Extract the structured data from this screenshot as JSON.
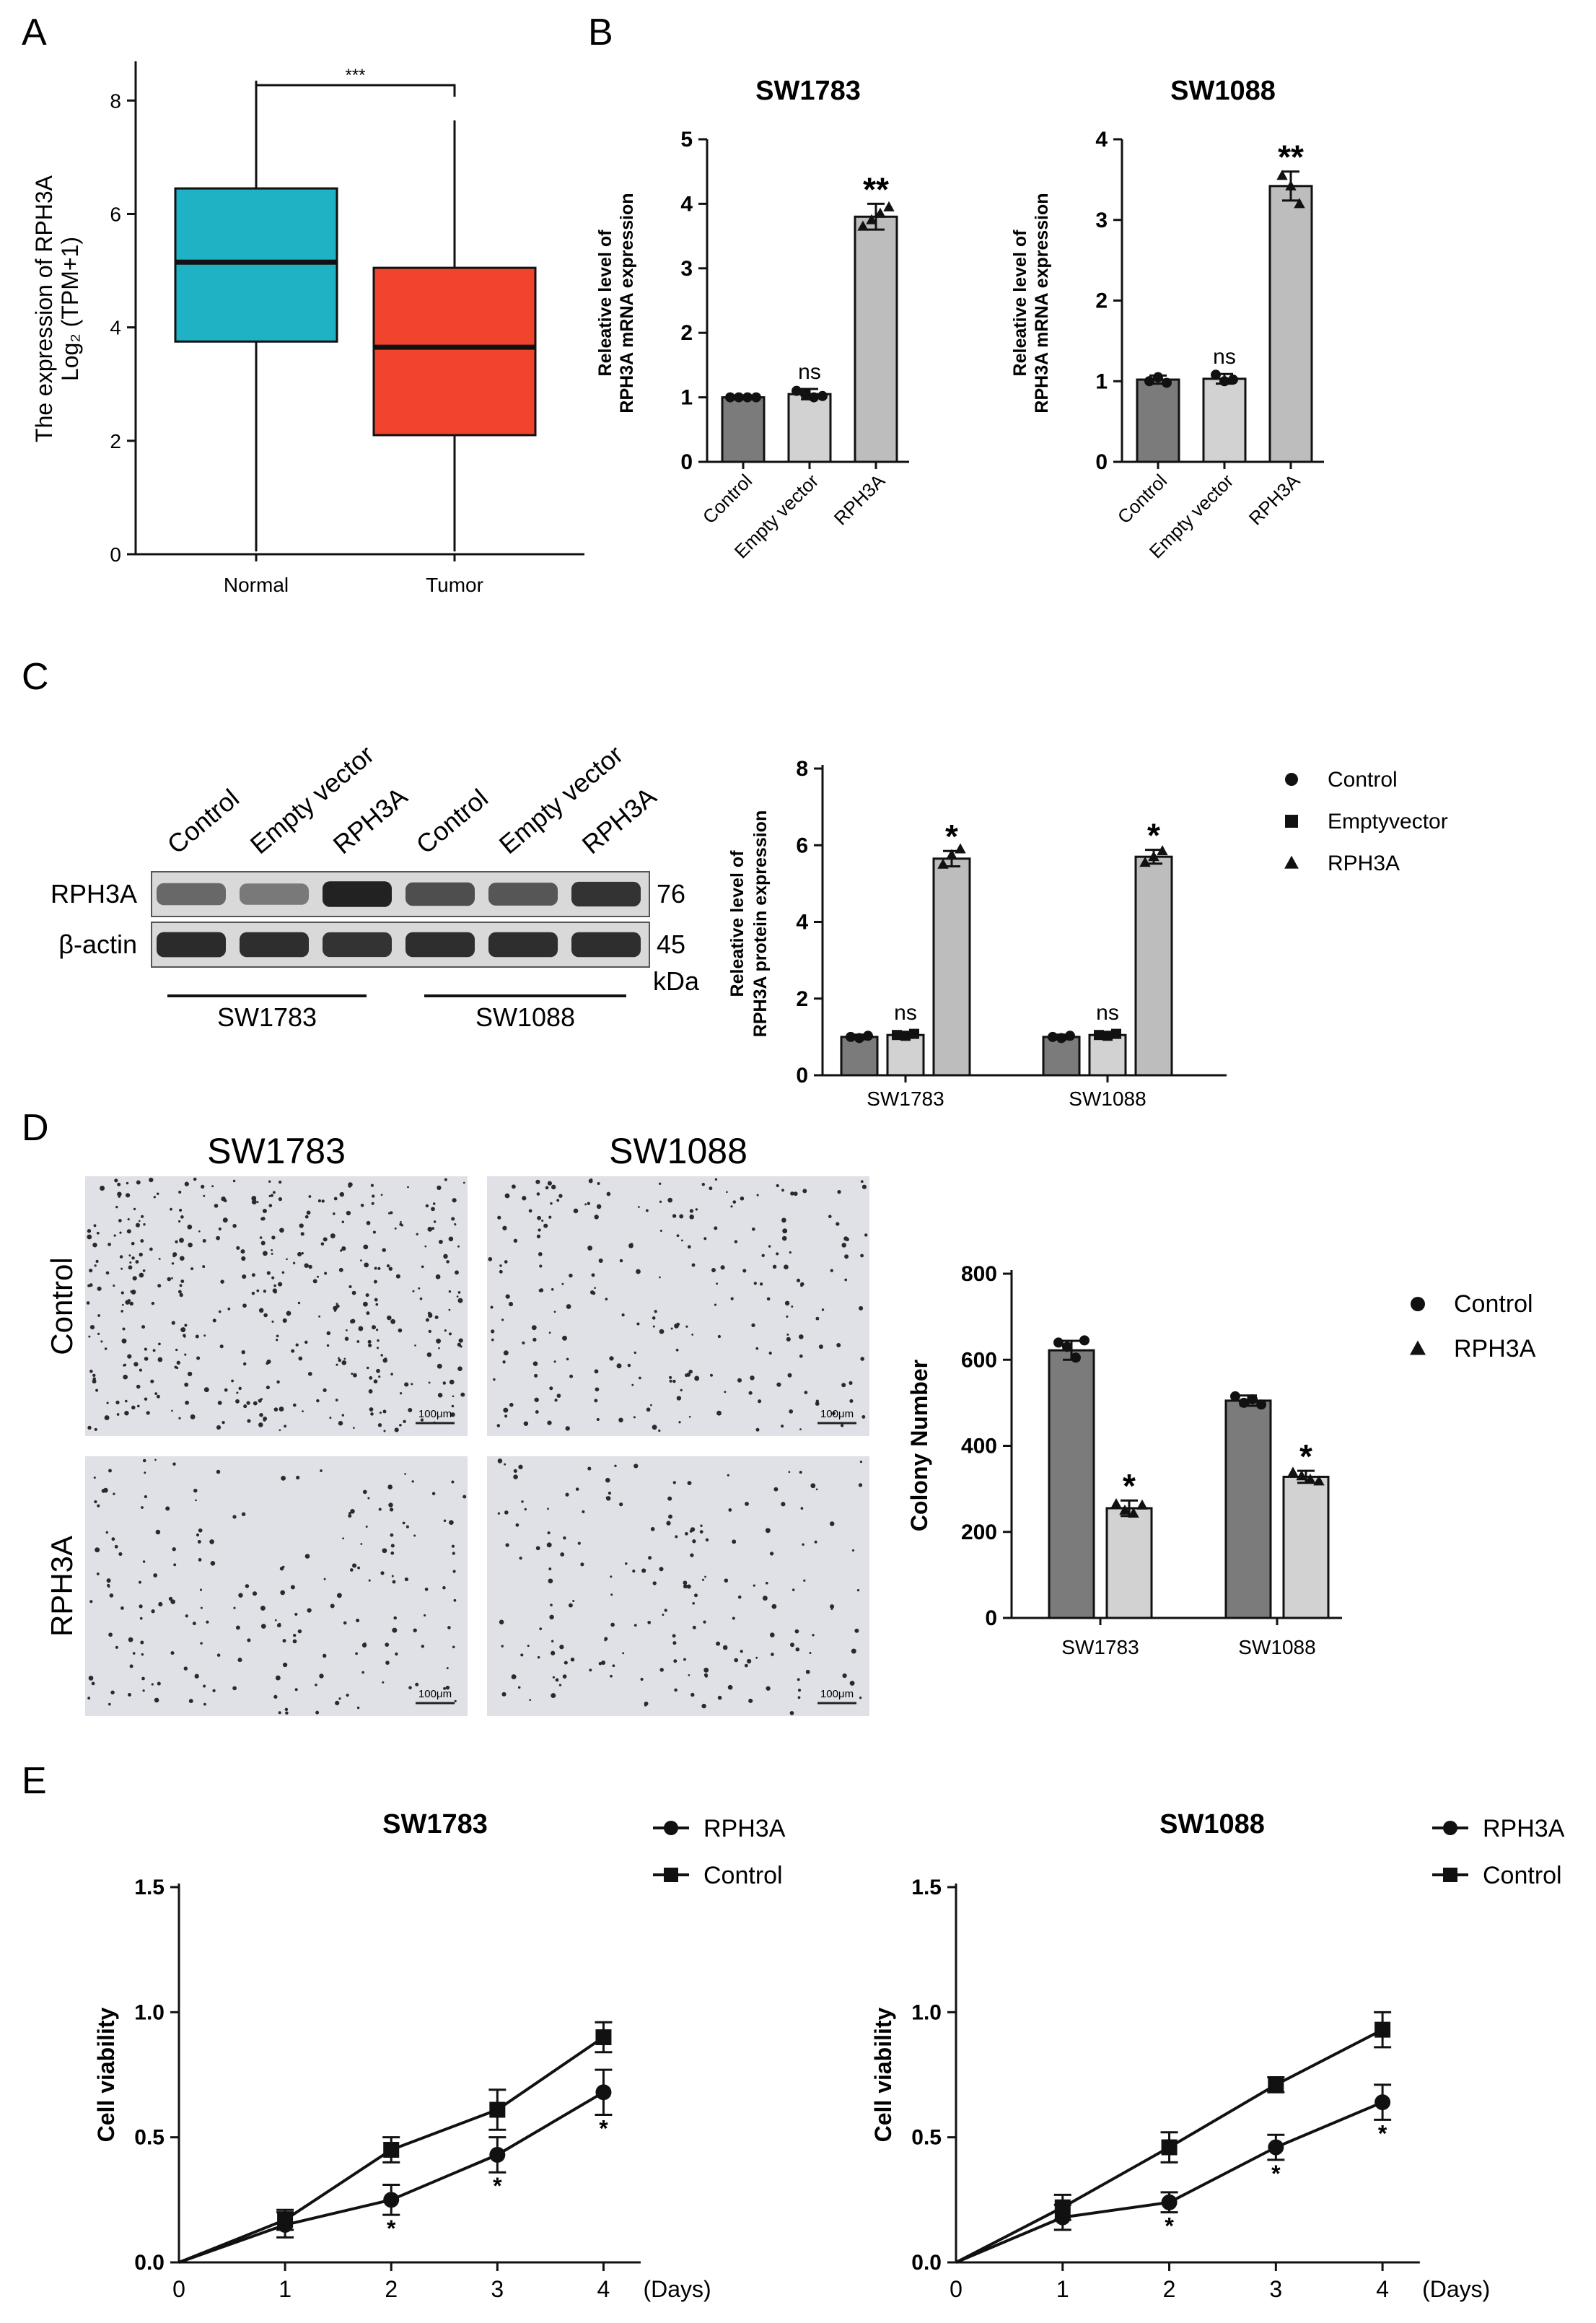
{
  "panels": {
    "A": "A",
    "B": "B",
    "C": "C",
    "D": "D",
    "E": "E"
  },
  "colors": {
    "normal": "#1fb1c4",
    "tumor": "#f2442c",
    "dark_bar": "#7b7b7b",
    "light_bar": "#d2d2d2",
    "mid_bar": "#bdbdbd",
    "axis": "#111111"
  },
  "chart_data": [
    {
      "id": "A",
      "type": "boxplot",
      "title": "",
      "ylabel_line1": "The expression of RPH3A",
      "ylabel_line2": "Log₂ (TPM+1)",
      "categories": [
        "Normal",
        "Tumor"
      ],
      "ylim": [
        0,
        8.5
      ],
      "yticks": [
        0,
        2,
        4,
        6,
        8
      ],
      "boxes": [
        {
          "name": "Normal",
          "min": 0.05,
          "q1": 3.75,
          "median": 5.15,
          "q3": 6.45,
          "max": 8.35
        },
        {
          "name": "Tumor",
          "min": 0.05,
          "q1": 2.1,
          "median": 3.65,
          "q3": 5.05,
          "max": 7.65
        }
      ],
      "significance": "***"
    },
    {
      "id": "B1",
      "type": "bar",
      "title": "SW1783",
      "ylabel_line1": "Releative level of",
      "ylabel_line2": "RPH3A mRNA expression",
      "categories": [
        "Control",
        "Empty vector",
        "RPH3A"
      ],
      "values": [
        1.0,
        1.05,
        3.8
      ],
      "errors": [
        0.03,
        0.08,
        0.2
      ],
      "points": [
        [
          1.0,
          1.0,
          1.0,
          1.0
        ],
        [
          1.1,
          1.05,
          1.0,
          1.02
        ],
        [
          3.65,
          3.75,
          3.85,
          3.95
        ]
      ],
      "annotations": [
        "",
        "ns",
        "**"
      ],
      "ylim": [
        0,
        5
      ],
      "yticks": [
        0,
        1,
        2,
        3,
        4,
        5
      ]
    },
    {
      "id": "B2",
      "type": "bar",
      "title": "SW1088",
      "ylabel_line1": "Releative level of",
      "ylabel_line2": "RPH3A mRNA expression",
      "categories": [
        "Control",
        "Empty vector",
        "RPH3A"
      ],
      "values": [
        1.02,
        1.03,
        3.42
      ],
      "errors": [
        0.05,
        0.06,
        0.18
      ],
      "points": [
        [
          1.0,
          1.05,
          0.98
        ],
        [
          1.08,
          1.0,
          1.02
        ],
        [
          3.55,
          3.42,
          3.2
        ]
      ],
      "annotations": [
        "",
        "ns",
        "**"
      ],
      "ylim": [
        0,
        4
      ],
      "yticks": [
        0,
        1,
        2,
        3,
        4
      ]
    },
    {
      "id": "C",
      "type": "bar",
      "title": "",
      "ylabel_line1": "Releative level of",
      "ylabel_line2": "RPH3A protein expression",
      "categories": [
        "SW1783",
        "SW1088"
      ],
      "series": [
        {
          "name": "Control",
          "marker": "circle",
          "values": [
            1.0,
            1.0
          ],
          "errors": [
            0.06,
            0.06
          ],
          "points": [
            [
              1.0,
              0.97,
              1.03
            ],
            [
              1.0,
              0.97,
              1.03
            ]
          ]
        },
        {
          "name": "Emptyvector",
          "marker": "square",
          "values": [
            1.05,
            1.05
          ],
          "errors": [
            0.06,
            0.06
          ],
          "points": [
            [
              1.05,
              1.03,
              1.08
            ],
            [
              1.05,
              1.03,
              1.08
            ]
          ]
        },
        {
          "name": "RPH3A",
          "marker": "triangle",
          "values": [
            5.65,
            5.7
          ],
          "errors": [
            0.2,
            0.18
          ],
          "points": [
            [
              5.5,
              5.75,
              5.9
            ],
            [
              5.55,
              5.7,
              5.85
            ]
          ]
        }
      ],
      "annotations": [
        [
          "",
          "ns",
          "*"
        ],
        [
          "",
          "ns",
          "*"
        ]
      ],
      "ylim": [
        0,
        8
      ],
      "yticks": [
        0,
        2,
        4,
        6,
        8
      ]
    },
    {
      "id": "D",
      "type": "bar",
      "title": "",
      "ylabel": "Colony Number",
      "categories": [
        "SW1783",
        "SW1088"
      ],
      "series": [
        {
          "name": "Control",
          "marker": "circle",
          "values": [
            622,
            505
          ],
          "errors": [
            22,
            12
          ],
          "points": [
            [
              640,
              630,
              605,
              645
            ],
            [
              515,
              500,
              508,
              496
            ]
          ]
        },
        {
          "name": "RPH3A",
          "marker": "triangle",
          "values": [
            255,
            328
          ],
          "errors": [
            18,
            14
          ],
          "points": [
            [
              265,
              250,
              243,
              262
            ],
            [
              338,
              330,
              322,
              318
            ]
          ]
        }
      ],
      "annotations": [
        [
          "",
          "*"
        ],
        [
          "",
          "*"
        ]
      ],
      "ylim": [
        0,
        800
      ],
      "yticks": [
        0,
        200,
        400,
        600,
        800
      ]
    },
    {
      "id": "E1",
      "type": "line",
      "title": "SW1783",
      "ylabel": "Cell viability",
      "xlabel": "(Days)",
      "x": [
        0,
        1,
        2,
        3,
        4
      ],
      "xlim": [
        0,
        4.5
      ],
      "ylim": [
        0,
        1.5
      ],
      "yticks": [
        0.0,
        0.5,
        1.0,
        1.5
      ],
      "series": [
        {
          "name": "RPH3A",
          "marker": "circle",
          "values": [
            0,
            0.15,
            0.25,
            0.43,
            0.68
          ],
          "errors": [
            0,
            0.05,
            0.06,
            0.07,
            0.09
          ],
          "annotations": [
            "",
            "",
            "*",
            "*",
            "*"
          ]
        },
        {
          "name": "Control",
          "marker": "square",
          "values": [
            0,
            0.17,
            0.45,
            0.61,
            0.9
          ],
          "errors": [
            0,
            0.04,
            0.05,
            0.08,
            0.06
          ],
          "annotations": [
            "",
            "",
            "",
            "",
            ""
          ]
        }
      ]
    },
    {
      "id": "E2",
      "type": "line",
      "title": "SW1088",
      "ylabel": "Cell viability",
      "xlabel": "(Days)",
      "x": [
        0,
        1,
        2,
        3,
        4
      ],
      "xlim": [
        0,
        4.5
      ],
      "ylim": [
        0,
        1.5
      ],
      "yticks": [
        0.0,
        0.5,
        1.0,
        1.5
      ],
      "series": [
        {
          "name": "RPH3A",
          "marker": "circle",
          "values": [
            0,
            0.18,
            0.24,
            0.46,
            0.64
          ],
          "errors": [
            0,
            0.05,
            0.04,
            0.05,
            0.07
          ],
          "annotations": [
            "",
            "",
            "*",
            "*",
            "*"
          ]
        },
        {
          "name": "Control",
          "marker": "square",
          "values": [
            0,
            0.22,
            0.46,
            0.71,
            0.93
          ],
          "errors": [
            0,
            0.05,
            0.06,
            0.03,
            0.07
          ],
          "annotations": [
            "",
            "",
            "",
            "",
            ""
          ]
        }
      ]
    }
  ],
  "western_blot": {
    "lanes": [
      "Control",
      "Empty vector",
      "RPH3A",
      "Control",
      "Empty vector",
      "RPH3A"
    ],
    "rows": [
      {
        "label": "RPH3A",
        "kda": "76",
        "intensity": [
          0.55,
          0.45,
          0.95,
          0.7,
          0.65,
          0.85
        ]
      },
      {
        "label": "β-actin",
        "kda": "45",
        "intensity": [
          0.9,
          0.88,
          0.85,
          0.88,
          0.88,
          0.88
        ]
      }
    ],
    "unit": "kDa",
    "groups": [
      "SW1783",
      "SW1088"
    ]
  },
  "colony_images": {
    "columns": [
      "SW1783",
      "SW1088"
    ],
    "rows": [
      "Control",
      "RPH3A"
    ],
    "scale_bar": "100μm",
    "dot_density": [
      [
        1.0,
        0.55
      ],
      [
        0.45,
        0.42
      ]
    ]
  }
}
